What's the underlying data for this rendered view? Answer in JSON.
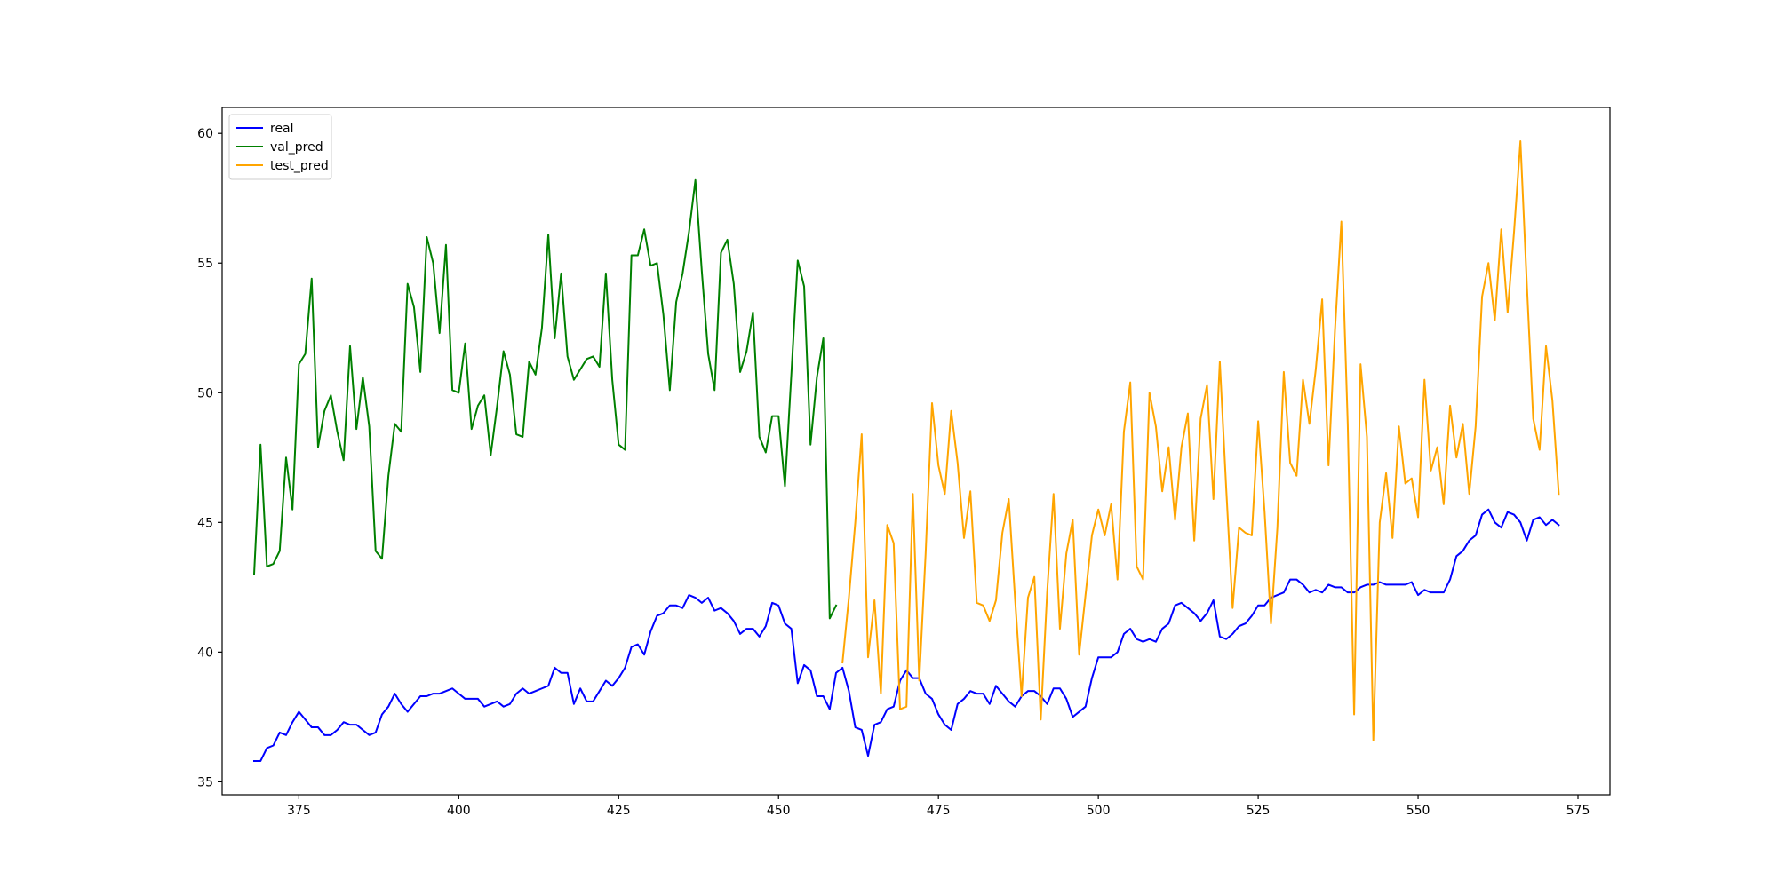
{
  "chart_data": {
    "type": "line",
    "title": "",
    "xlabel": "",
    "ylabel": "",
    "xlim": [
      363,
      580
    ],
    "ylim": [
      34.5,
      61.0
    ],
    "grid": false,
    "legend_position": "top-left",
    "xticks": [
      375,
      400,
      425,
      450,
      475,
      500,
      525,
      550,
      575
    ],
    "yticks": [
      35,
      40,
      45,
      50,
      55,
      60
    ],
    "series": [
      {
        "name": "real",
        "color": "#0000ff",
        "x": [
          368,
          369,
          370,
          371,
          372,
          373,
          374,
          375,
          376,
          377,
          378,
          379,
          380,
          381,
          382,
          383,
          384,
          385,
          386,
          387,
          388,
          389,
          390,
          391,
          392,
          393,
          394,
          395,
          396,
          397,
          398,
          399,
          400,
          401,
          402,
          403,
          404,
          405,
          406,
          407,
          408,
          409,
          410,
          411,
          412,
          413,
          414,
          415,
          416,
          417,
          418,
          419,
          420,
          421,
          422,
          423,
          424,
          425,
          426,
          427,
          428,
          429,
          430,
          431,
          432,
          433,
          434,
          435,
          436,
          437,
          438,
          439,
          440,
          441,
          442,
          443,
          444,
          445,
          446,
          447,
          448,
          449,
          450,
          451,
          452,
          453,
          454,
          455,
          456,
          457,
          458,
          459,
          460,
          461,
          462,
          463,
          464,
          465,
          466,
          467,
          468,
          469,
          470,
          471,
          472,
          473,
          474,
          475,
          476,
          477,
          478,
          479,
          480,
          481,
          482,
          483,
          484,
          485,
          486,
          487,
          488,
          489,
          490,
          491,
          492,
          493,
          494,
          495,
          496,
          497,
          498,
          499,
          500,
          501,
          502,
          503,
          504,
          505,
          506,
          507,
          508,
          509,
          510,
          511,
          512,
          513,
          514,
          515,
          516,
          517,
          518,
          519,
          520,
          521,
          522,
          523,
          524,
          525,
          526,
          527,
          528,
          529,
          530,
          531,
          532,
          533,
          534,
          535,
          536,
          537,
          538,
          539,
          540,
          541,
          542,
          543,
          544,
          545,
          546,
          547,
          548,
          549,
          550,
          551,
          552,
          553,
          554,
          555,
          556,
          557,
          558,
          559,
          560,
          561,
          562,
          563,
          564,
          565,
          566,
          567,
          568,
          569,
          570,
          571,
          572
        ],
        "values": [
          35.8,
          35.8,
          36.3,
          36.4,
          36.9,
          36.8,
          37.3,
          37.7,
          37.4,
          37.1,
          37.1,
          36.8,
          36.8,
          37.0,
          37.3,
          37.2,
          37.2,
          37.0,
          36.8,
          36.9,
          37.6,
          37.9,
          38.4,
          38.0,
          37.7,
          38.0,
          38.3,
          38.3,
          38.4,
          38.4,
          38.5,
          38.6,
          38.4,
          38.2,
          38.2,
          38.2,
          37.9,
          38.0,
          38.1,
          37.9,
          38.0,
          38.4,
          38.6,
          38.4,
          38.5,
          38.6,
          38.7,
          39.4,
          39.2,
          39.2,
          38.0,
          38.6,
          38.1,
          38.1,
          38.5,
          38.9,
          38.7,
          39.0,
          39.4,
          40.2,
          40.3,
          39.9,
          40.8,
          41.4,
          41.5,
          41.8,
          41.8,
          41.7,
          42.2,
          42.1,
          41.9,
          42.1,
          41.6,
          41.7,
          41.5,
          41.2,
          40.7,
          40.9,
          40.9,
          40.6,
          41.0,
          41.9,
          41.8,
          41.1,
          40.9,
          38.8,
          39.5,
          39.3,
          38.3,
          38.3,
          37.8,
          39.2,
          39.4,
          38.5,
          37.1,
          37.0,
          36.0,
          37.2,
          37.3,
          37.8,
          37.9,
          38.9,
          39.3,
          39.0,
          39.0,
          38.4,
          38.2,
          37.6,
          37.2,
          37.0,
          38.0,
          38.2,
          38.5,
          38.4,
          38.4,
          38.0,
          38.7,
          38.4,
          38.1,
          37.9,
          38.3,
          38.5,
          38.5,
          38.3,
          38.0,
          38.6,
          38.6,
          38.2,
          37.5,
          37.7,
          37.9,
          39.0,
          39.8,
          39.8,
          39.8,
          40.0,
          40.7,
          40.9,
          40.5,
          40.4,
          40.5,
          40.4,
          40.9,
          41.1,
          41.8,
          41.9,
          41.7,
          41.5,
          41.2,
          41.5,
          42.0,
          40.6,
          40.5,
          40.7,
          41.0,
          41.1,
          41.4,
          41.8,
          41.8,
          42.1,
          42.2,
          42.3,
          42.8,
          42.8,
          42.6,
          42.3,
          42.4,
          42.3,
          42.6,
          42.5,
          42.5,
          42.3,
          42.3,
          42.5,
          42.6,
          42.6,
          42.7,
          42.6,
          42.6,
          42.6,
          42.6,
          42.7,
          42.2,
          42.4,
          42.3,
          42.3,
          42.3,
          42.8,
          43.7,
          43.9,
          44.3,
          44.5,
          45.3,
          45.5,
          45.0,
          44.8,
          45.4,
          45.3,
          45.0,
          44.3,
          45.1,
          45.2,
          44.9,
          45.1,
          44.9
        ]
      },
      {
        "name": "val_pred",
        "color": "#008000",
        "x": [
          368,
          369,
          370,
          371,
          372,
          373,
          374,
          375,
          376,
          377,
          378,
          379,
          380,
          381,
          382,
          383,
          384,
          385,
          386,
          387,
          388,
          389,
          390,
          391,
          392,
          393,
          394,
          395,
          396,
          397,
          398,
          399,
          400,
          401,
          402,
          403,
          404,
          405,
          406,
          407,
          408,
          409,
          410,
          411,
          412,
          413,
          414,
          415,
          416,
          417,
          418,
          419,
          420,
          421,
          422,
          423,
          424,
          425,
          426,
          427,
          428,
          429,
          430,
          431,
          432,
          433,
          434,
          435,
          436,
          437,
          438,
          439,
          440,
          441,
          442,
          443,
          444,
          445,
          446,
          447,
          448,
          449,
          450,
          451,
          452,
          453,
          454,
          455,
          456,
          457,
          458,
          459
        ],
        "values": [
          43.0,
          48.0,
          43.3,
          43.4,
          43.9,
          47.5,
          45.5,
          51.1,
          51.5,
          54.4,
          47.9,
          49.3,
          49.9,
          48.5,
          47.4,
          51.8,
          48.6,
          50.6,
          48.7,
          43.9,
          43.6,
          46.8,
          48.8,
          48.5,
          54.2,
          53.3,
          50.8,
          56.0,
          55.0,
          52.3,
          55.7,
          50.1,
          50.0,
          51.9,
          48.6,
          49.5,
          49.9,
          47.6,
          49.5,
          51.6,
          50.7,
          48.4,
          48.3,
          51.2,
          50.7,
          52.5,
          56.1,
          52.1,
          54.6,
          51.4,
          50.5,
          50.9,
          51.3,
          51.4,
          51.0,
          54.6,
          50.5,
          48.0,
          47.8,
          55.3,
          55.3,
          56.3,
          54.9,
          55.0,
          53.0,
          50.1,
          53.5,
          54.6,
          56.2,
          58.2,
          54.7,
          51.5,
          50.1,
          55.4,
          55.9,
          54.2,
          50.8,
          51.6,
          53.1,
          48.3,
          47.7,
          49.1,
          49.1,
          46.4,
          50.7,
          55.1,
          54.1,
          48.0,
          50.6,
          52.1,
          41.3,
          41.8
        ]
      },
      {
        "name": "test_pred",
        "color": "#ffa500",
        "x": [
          460,
          461,
          462,
          463,
          464,
          465,
          466,
          467,
          468,
          469,
          470,
          471,
          472,
          473,
          474,
          475,
          476,
          477,
          478,
          479,
          480,
          481,
          482,
          483,
          484,
          485,
          486,
          487,
          488,
          489,
          490,
          491,
          492,
          493,
          494,
          495,
          496,
          497,
          498,
          499,
          500,
          501,
          502,
          503,
          504,
          505,
          506,
          507,
          508,
          509,
          510,
          511,
          512,
          513,
          514,
          515,
          516,
          517,
          518,
          519,
          520,
          521,
          522,
          523,
          524,
          525,
          526,
          527,
          528,
          529,
          530,
          531,
          532,
          533,
          534,
          535,
          536,
          537,
          538,
          539,
          540,
          541,
          542,
          543,
          544,
          545,
          546,
          547,
          548,
          549,
          550,
          551,
          552,
          553,
          554,
          555,
          556,
          557,
          558,
          559,
          560,
          561,
          562,
          563,
          564,
          565,
          566,
          567,
          568,
          569,
          570,
          571,
          572
        ],
        "values": [
          39.6,
          42.1,
          45.0,
          48.4,
          39.8,
          42.0,
          38.4,
          44.9,
          44.2,
          37.8,
          37.9,
          46.1,
          38.9,
          43.8,
          49.6,
          47.2,
          46.1,
          49.3,
          47.3,
          44.4,
          46.2,
          41.9,
          41.8,
          41.2,
          42.0,
          44.6,
          45.9,
          42.0,
          38.3,
          42.1,
          42.9,
          37.4,
          42.3,
          46.1,
          40.9,
          43.8,
          45.1,
          39.9,
          42.2,
          44.5,
          45.5,
          44.5,
          45.7,
          42.8,
          48.5,
          50.4,
          43.3,
          42.8,
          50.0,
          48.7,
          46.2,
          47.9,
          45.1,
          47.9,
          49.2,
          44.3,
          49.0,
          50.3,
          45.9,
          51.2,
          46.3,
          41.7,
          44.8,
          44.6,
          44.5,
          48.9,
          45.4,
          41.1,
          44.8,
          50.8,
          47.3,
          46.8,
          50.5,
          48.8,
          50.9,
          53.6,
          47.2,
          52.4,
          56.6,
          48.8,
          37.6,
          51.1,
          48.3,
          36.6,
          45.0,
          46.9,
          44.4,
          48.7,
          46.5,
          46.7,
          45.2,
          50.5,
          47.0,
          47.9,
          45.7,
          49.5,
          47.5,
          48.8,
          46.1,
          48.7,
          53.7,
          55.0,
          52.8,
          56.3,
          53.1,
          56.2,
          59.7,
          54.2,
          49.0,
          47.8,
          51.8,
          49.7,
          46.1
        ]
      }
    ]
  }
}
